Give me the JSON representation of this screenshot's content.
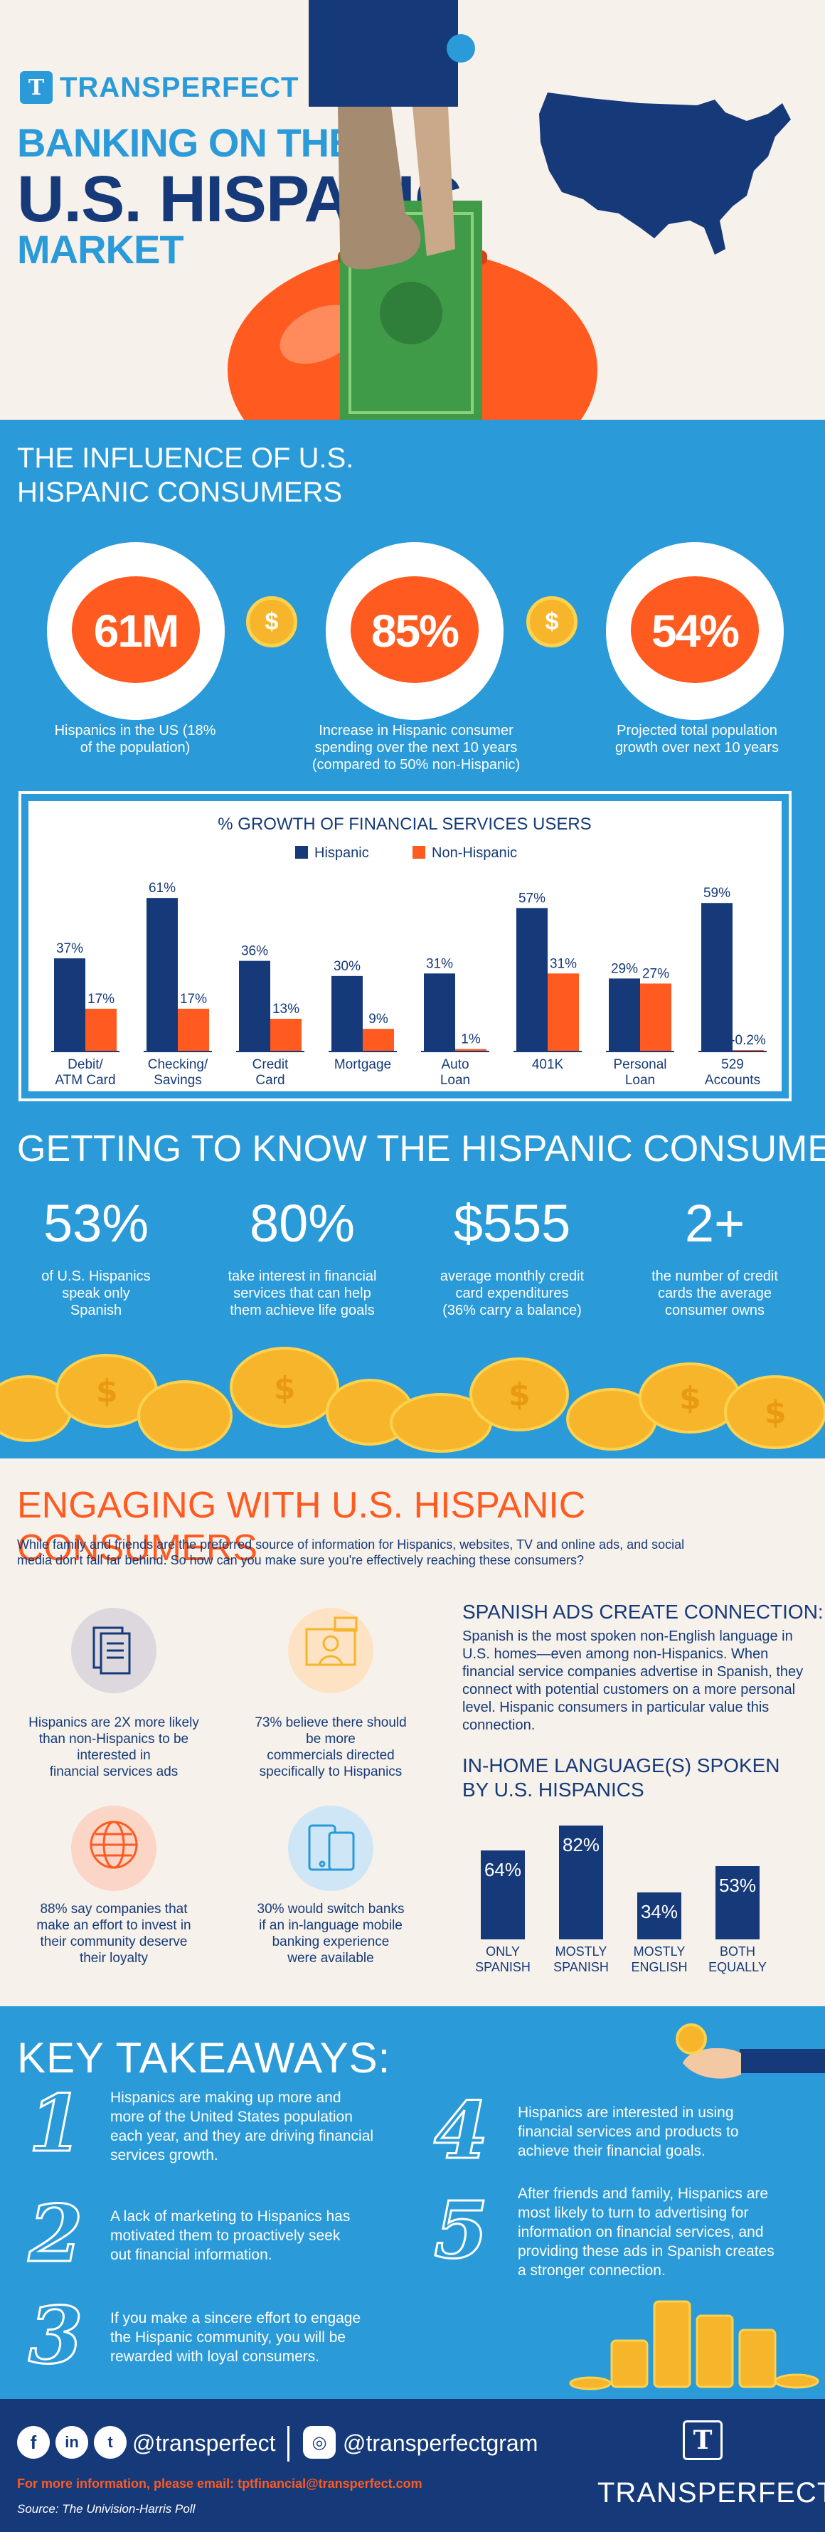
{
  "header": {
    "brand": "TRANSPERFECT",
    "brand_mark": "T",
    "headline_1": "BANKING ON THE",
    "headline_2": "U.S. HISPANIC",
    "headline_3": "MARKET"
  },
  "influence": {
    "title_1": "THE INFLUENCE OF U.S.",
    "title_2": "HISPANIC CONSUMERS",
    "coin_symbol": "$",
    "stats": [
      {
        "value": "61M",
        "desc_1": "Hispanics in the US (18%",
        "desc_2": "of the population)",
        "desc_3": ""
      },
      {
        "value": "85%",
        "desc_1": "Increase in Hispanic consumer",
        "desc_2": "spending over the next 10 years",
        "desc_3": "(compared to 50% non-Hispanic)"
      },
      {
        "value": "54%",
        "desc_1": "Projected total population",
        "desc_2": "growth over next 10 years",
        "desc_3": ""
      }
    ]
  },
  "chart_data": {
    "type": "bar",
    "title": "% GROWTH OF FINANCIAL SERVICES USERS",
    "categories": [
      "Debit/ ATM Card",
      "Checking/ Savings",
      "Credit Card",
      "Mortgage",
      "Auto Loan",
      "401K",
      "Personal Loan",
      "529 Accounts"
    ],
    "category_lines": [
      [
        "Debit/",
        "ATM Card"
      ],
      [
        "Checking/",
        "Savings"
      ],
      [
        "Credit",
        "Card"
      ],
      [
        "Mortgage",
        ""
      ],
      [
        "Auto",
        "Loan"
      ],
      [
        "401K",
        ""
      ],
      [
        "Personal",
        "Loan"
      ],
      [
        "529",
        "Accounts"
      ]
    ],
    "series": [
      {
        "name": "Hispanic",
        "values": [
          37,
          61,
          36,
          30,
          31,
          57,
          29,
          59
        ],
        "labels": [
          "37%",
          "61%",
          "36%",
          "30%",
          "31%",
          "57%",
          "29%",
          "59%"
        ],
        "color": "#163a79"
      },
      {
        "name": "Non-Hispanic",
        "values": [
          17,
          17,
          13,
          9,
          1,
          31,
          27,
          -0.2
        ],
        "labels": [
          "17%",
          "17%",
          "13%",
          "9%",
          "1%",
          "31%",
          "27%",
          "-0.2%"
        ],
        "color": "#ff5a1f"
      }
    ],
    "ylim": [
      0,
      65
    ],
    "legend": "top-center",
    "grid": false
  },
  "getting": {
    "title": "GETTING TO KNOW THE HISPANIC CONSUMER",
    "stats": [
      {
        "value": "53%",
        "l1": "of U.S. Hispanics",
        "l2": "speak only",
        "l3": "Spanish"
      },
      {
        "value": "80%",
        "l1": "take interest in financial",
        "l2": "services that can help",
        "l3": "them achieve life goals"
      },
      {
        "value": "$555",
        "l1": "average monthly credit",
        "l2": "card expenditures",
        "l3": "(36% carry a balance)"
      },
      {
        "value": "2+",
        "l1": "the number of credit",
        "l2": "cards the average",
        "l3": "consumer owns"
      }
    ]
  },
  "engaging": {
    "title": "ENGAGING WITH U.S. HISPANIC CONSUMERS",
    "intro_1": "While family and friends are the preferred source of information for Hispanics, websites, TV and online ads, and social",
    "intro_2": "media don't fall far behind. So how can you make sure you're effectively reaching these consumers?",
    "facts": [
      {
        "l1": "Hispanics are 2X more likely",
        "l2": "than non-Hispanics to be",
        "l3": "interested in",
        "l4": "financial services ads"
      },
      {
        "l1": "73% believe there should",
        "l2": "be more",
        "l3": "commercials directed",
        "l4": "specifically to Hispanics"
      },
      {
        "l1": "88% say companies that",
        "l2": "make an effort to invest in",
        "l3": "their community deserve",
        "l4": "their loyalty"
      },
      {
        "l1": "30% would switch banks",
        "l2": "if an in-language mobile",
        "l3": "banking experience",
        "l4": "were available"
      }
    ],
    "ads_title": "SPANISH ADS CREATE CONNECTION:",
    "ads_text": "Spanish is the most spoken non-English language in U.S. homes—even among non-Hispanics. When financial service companies advertise in Spanish, they connect with potential customers on a more personal level. Hispanic consumers in particular value this connection.",
    "lang_title_1": "IN-HOME LANGUAGE(S) SPOKEN",
    "lang_title_2": "BY U.S. HISPANICS",
    "languages": [
      {
        "label_1": "ONLY",
        "label_2": "SPANISH",
        "value": 64,
        "text": "64%"
      },
      {
        "label_1": "MOSTLY",
        "label_2": "SPANISH",
        "value": 82,
        "text": "82%"
      },
      {
        "label_1": "MOSTLY",
        "label_2": "ENGLISH",
        "value": 34,
        "text": "34%"
      },
      {
        "label_1": "BOTH",
        "label_2": "EQUALLY",
        "value": 53,
        "text": "53%"
      }
    ]
  },
  "takeaways": {
    "title": "KEY TAKEAWAYS:",
    "items": [
      {
        "num": "1",
        "l1": "Hispanics are making up more and",
        "l2": "more of the United States population",
        "l3": "each year, and they are driving financial",
        "l4": "services growth."
      },
      {
        "num": "2",
        "l1": "A lack of marketing to Hispanics has",
        "l2": "motivated them to proactively seek",
        "l3": "out financial information.",
        "l4": ""
      },
      {
        "num": "3",
        "l1": "If you make a sincere effort to engage",
        "l2": "the Hispanic community, you will be",
        "l3": "rewarded with loyal consumers.",
        "l4": ""
      },
      {
        "num": "4",
        "l1": "Hispanics are interested in using",
        "l2": "financial services and products to",
        "l3": "achieve their financial goals.",
        "l4": ""
      },
      {
        "num": "5",
        "l1": "After friends and family, Hispanics are",
        "l2": "most likely to turn to advertising for",
        "l3": "information on financial services, and",
        "l4": "providing these ads in Spanish creates",
        "l5": "a stronger connection."
      }
    ]
  },
  "footer": {
    "handle_1": "@transperfect",
    "handle_2": "@transperfectgram",
    "contact": "For more information, please email: tptfinancial@transperfect.com",
    "source": "Source: The Univision-Harris Poll",
    "brand": "TRANSPERFECT",
    "icons": [
      "facebook-icon",
      "linkedin-icon",
      "twitter-icon",
      "instagram-icon"
    ]
  },
  "colors": {
    "blue": "#2a9ad8",
    "navy": "#163a79",
    "orange": "#ff5a1f",
    "cream": "#f6f1ea",
    "gold": "#f7b52b"
  }
}
